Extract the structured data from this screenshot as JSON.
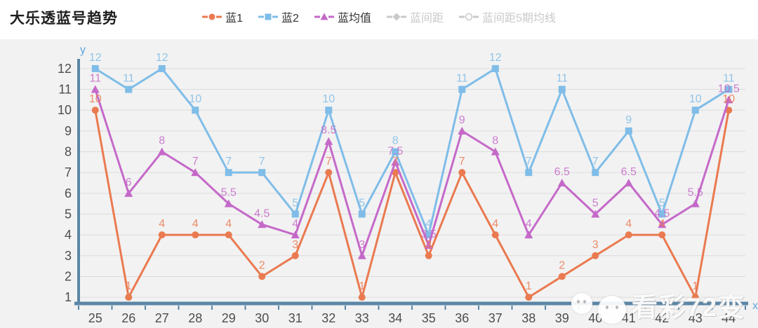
{
  "page": {
    "title": "大乐透蓝号趋势",
    "watermark": "看彩72变"
  },
  "legend": [
    {
      "label": "蓝1",
      "marker": "circle",
      "color": "#ea7a50",
      "active": true
    },
    {
      "label": "蓝2",
      "marker": "square",
      "color": "#7fbde8",
      "active": true
    },
    {
      "label": "蓝均值",
      "marker": "triangle",
      "color": "#c569c9",
      "active": true
    },
    {
      "label": "蓝间距",
      "marker": "diamond",
      "color": "#c9c9c9",
      "active": false
    },
    {
      "label": "蓝间距5期均线",
      "marker": "ring",
      "color": "#c9c9c9",
      "active": false
    }
  ],
  "chart_data": {
    "type": "line",
    "title": "大乐透蓝号趋势",
    "x": [
      25,
      26,
      27,
      28,
      29,
      30,
      31,
      32,
      33,
      34,
      35,
      36,
      37,
      38,
      39,
      40,
      41,
      42,
      43,
      44
    ],
    "series": [
      {
        "name": "蓝1",
        "marker": "circle",
        "color": "#ea7a50",
        "values": [
          10,
          1,
          4,
          4,
          4,
          2,
          3,
          7,
          1,
          7,
          3,
          7,
          4,
          1,
          2,
          3,
          4,
          4,
          1,
          10
        ]
      },
      {
        "name": "蓝2",
        "marker": "square",
        "color": "#7fbde8",
        "values": [
          12,
          11,
          12,
          10,
          7,
          7,
          5,
          10,
          5,
          8,
          4,
          11,
          12,
          7,
          11,
          7,
          9,
          5,
          10,
          11
        ]
      },
      {
        "name": "蓝均值",
        "marker": "triangle",
        "color": "#c569c9",
        "values": [
          11,
          6,
          8,
          7,
          5.5,
          4.5,
          4,
          8.5,
          3,
          7.5,
          3.5,
          9,
          8,
          4,
          6.5,
          5,
          6.5,
          4.5,
          5.5,
          10.5
        ]
      }
    ],
    "hidden_series": [
      {
        "name": "蓝间距",
        "marker": "diamond"
      },
      {
        "name": "蓝间距5期均线",
        "marker": "ring"
      }
    ],
    "xlabel": "x",
    "ylabel": "y",
    "yticks": [
      1,
      2,
      3,
      4,
      5,
      6,
      7,
      8,
      9,
      10,
      11,
      12
    ],
    "ylim": [
      0.7,
      12.3
    ],
    "grid": "horizontal",
    "legend_position": "top",
    "show_point_labels": true
  },
  "style": {
    "axis_color": "#5b86a6",
    "axis_name_color": "#61a6dd",
    "tick_label_color": "#4d4d4d",
    "gridline_color": "#dbdbdb",
    "panel_bg": "#f2f2f2"
  }
}
